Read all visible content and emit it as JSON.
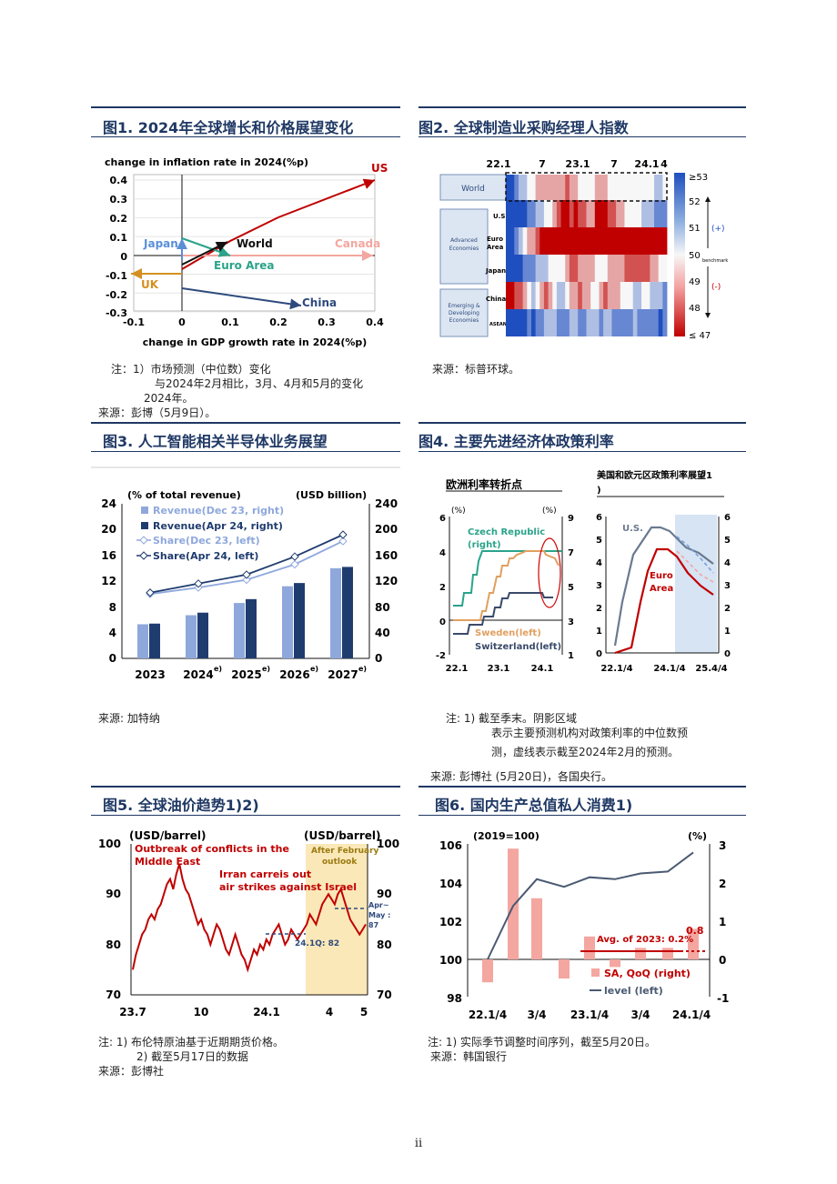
{
  "page_number": "ii",
  "colors": {
    "title_navy": "#1f3864",
    "us_red": "#c00000",
    "canada_pink": "#f4a6a0",
    "japan_blue": "#5b8fd8",
    "uk_orange": "#d49020",
    "euro_teal": "#2aa38a",
    "china_navy": "#2e4a7d",
    "bar_light": "#8fa8dc",
    "bar_dark": "#1f3c6e"
  },
  "fig1": {
    "title": "图1. 2024年全球增长和价格展望变化",
    "ylabel": "change in inflation rate in 2024(%p)",
    "xlabel": "change in GDP growth rate in 2024(%p)",
    "xticks": [
      "-0.1",
      "0",
      "0.1",
      "0.2",
      "0.3",
      "0.4"
    ],
    "yticks": [
      "0.4",
      "0.3",
      "0.2",
      "0.1",
      "0",
      "-0.1",
      "-0.2",
      "-0.3"
    ],
    "labels": {
      "us": "US",
      "world": "World",
      "japan": "Japan",
      "canada": "Canada",
      "euro": "Euro Area",
      "uk": "UK",
      "china": "China"
    },
    "note1": "注：1）市场预测（中位数）变化",
    "note2": "与2024年2月相比，3月、4月和5月的变化",
    "note3": "2024年。",
    "source": "来源：彭博（5月9日）。"
  },
  "fig2": {
    "title": "图2. 全球制造业采购经理人指数",
    "top_labels": [
      "22.1",
      "7",
      "23.1",
      "7",
      "24.1",
      "4"
    ],
    "rows": [
      "World",
      "U.S.",
      "Euro Area",
      "Japan",
      "China",
      "ASEAN"
    ],
    "groups": [
      "Advanced Economies",
      "Emerging & Developing Economies"
    ],
    "legend": [
      "≥53",
      "52",
      "51",
      "50",
      "49",
      "48",
      "≤ 47"
    ],
    "legend_plus": "(+)",
    "legend_minus": "(-)",
    "benchmark": "benchmark",
    "source": "来源：标普环球。"
  },
  "fig3": {
    "title": "图3. 人工智能相关半导体业务展望",
    "left_unit": "(% of total revenue)",
    "right_unit": "(USD billion)",
    "left_ticks": [
      "24",
      "20",
      "16",
      "12",
      "8",
      "4",
      "0"
    ],
    "right_ticks": [
      "240",
      "200",
      "160",
      "120",
      "80",
      "40",
      "0"
    ],
    "years": [
      "2023",
      "2024",
      "2025",
      "2026",
      "2027"
    ],
    "year_sup": [
      "",
      "e)",
      "e)",
      "e)",
      "e)"
    ],
    "legend": [
      "Revenue(Dec 23, right)",
      "Revenue(Apr 24, right)",
      "Share(Dec 23, left)",
      "Share(Apr 24, left)"
    ],
    "source": "来源: 加特纳"
  },
  "fig4": {
    "title": "图4. 主要先进经济体政策利率",
    "left_subtitle": "欧洲利率转折点",
    "right_subtitle": "美国和欧元区政策利率展望1)",
    "left_units": [
      "(%)",
      "(%)"
    ],
    "left_lticks": [
      "6",
      "4",
      "2",
      "0",
      "-2"
    ],
    "left_rticks": [
      "9",
      "7",
      "5",
      "3",
      "1"
    ],
    "left_xticks": [
      "22.1",
      "23.1",
      "24.1"
    ],
    "series_left": {
      "czech": "Czech Republic (right)",
      "sweden": "Sweden(left)",
      "switzerland": "Switzerland(left)"
    },
    "right_lticks": [
      "6",
      "5",
      "4",
      "3",
      "2",
      "1",
      "0"
    ],
    "right_xticks": [
      "22.1/4",
      "24.1/4",
      "25.4/4"
    ],
    "series_right": {
      "us": "U.S.",
      "euro": "Euro Area"
    },
    "note1": "注: 1) 截至季末。阴影区域",
    "note2": "表示主要预测机构对政策利率的中位数预",
    "note3": "测，虚线表示截至2024年2月的预测。",
    "source": "来源: 彭博社 (5月20日)，各国央行。"
  },
  "fig5": {
    "title": "图5. 全球油价趋势1)2)",
    "units": [
      "(USD/barrel)",
      "(USD/barrel)"
    ],
    "yticks": [
      "100",
      "90",
      "80",
      "70"
    ],
    "xticks": [
      "23.7",
      "10",
      "24.1",
      "4",
      "5"
    ],
    "annot1": "Outbreak of conflicts in the Middle East",
    "annot2": "Irran carreis out air strikes against Israel",
    "annot3": "After February outlook",
    "annot4": "24.1Q: 82",
    "annot5": "Apr~ May : 87",
    "note1": "注: 1) 布伦特原油基于近期期货价格。",
    "note2": "2) 截至5月17日的数据",
    "source": "来源：彭博社"
  },
  "fig6": {
    "title": "图6. 国内生产总值私人消费1)",
    "left_unit": "(2019=100)",
    "right_unit": "(%)",
    "left_ticks": [
      "106",
      "104",
      "102",
      "100",
      "98"
    ],
    "right_ticks": [
      "3",
      "2",
      "1",
      "0",
      "-1"
    ],
    "xticks": [
      "22.1/4",
      "3/4",
      "23.1/4",
      "3/4",
      "24.1/4"
    ],
    "avg_label": "Avg. of 2023: 0.2%",
    "last_value": "0.8",
    "legend": [
      "SA, QoQ (right)",
      "level (left)"
    ],
    "note1": "注: 1) 实际季节调整时间序列，截至5月20日。",
    "source": "来源：韩国银行"
  }
}
